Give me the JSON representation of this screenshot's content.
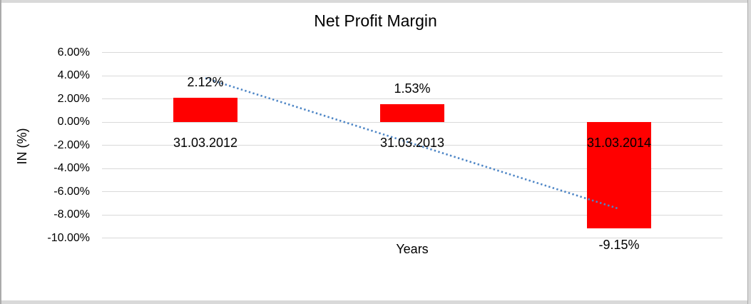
{
  "window": {
    "background": "#FFFFFF",
    "frame_strip_color": "#D9D9D9",
    "frame_border_color": "#ABABAB"
  },
  "chart_data": {
    "type": "bar",
    "title": "Net Profit Margin",
    "xlabel": "Years",
    "ylabel": "IN (%)",
    "categories": [
      "31.03.2012",
      "31.03.2013",
      "31.03.2014"
    ],
    "series": [
      {
        "name": "Net Profit Margin",
        "color": "#FF0000",
        "values": [
          2.12,
          1.53,
          -9.15
        ]
      }
    ],
    "data_labels": [
      "2.12%",
      "1.53%",
      "-9.15%"
    ],
    "y_ticks": [
      {
        "value": 6,
        "label": "6.00%"
      },
      {
        "value": 4,
        "label": "4.00%"
      },
      {
        "value": 2,
        "label": "2.00%"
      },
      {
        "value": 0,
        "label": "0.00%"
      },
      {
        "value": -2,
        "label": "-2.00%"
      },
      {
        "value": -4,
        "label": "-4.00%"
      },
      {
        "value": -6,
        "label": "-6.00%"
      },
      {
        "value": -8,
        "label": "-8.00%"
      },
      {
        "value": -10,
        "label": "-10.00%"
      }
    ],
    "ylim": [
      -10,
      6
    ],
    "grid": true,
    "gridline_color": "#D9D9D9",
    "legend": "none",
    "trendline": {
      "type": "linear",
      "style": "dotted",
      "color": "#4E86C6",
      "start_value": 3.8,
      "end_value": -7.47
    }
  }
}
